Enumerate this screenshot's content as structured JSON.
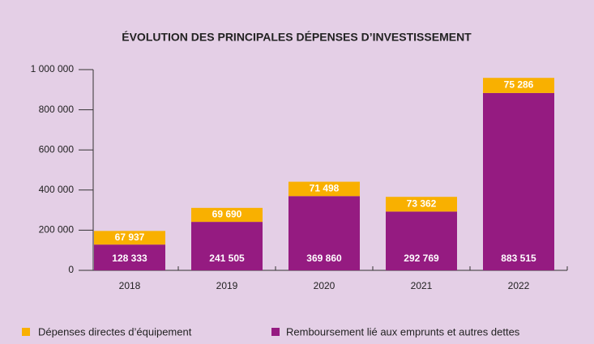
{
  "chart_data": {
    "type": "stacked_bar",
    "title": "ÉVOLUTION DES PRINCIPALES DÉPENSES D’INVESTISSEMENT",
    "categories": [
      "2018",
      "2019",
      "2020",
      "2021",
      "2022"
    ],
    "series": [
      {
        "name": "Remboursement lié aux emprunts et autres dettes",
        "color": "#951b81",
        "values": [
          128333,
          241505,
          369860,
          292769,
          883515
        ],
        "value_labels": [
          "128 333",
          "241 505",
          "369 860",
          "292 769",
          "883 515"
        ]
      },
      {
        "name": "Dépenses directes d’équipement",
        "color": "#f9b000",
        "values": [
          67937,
          69690,
          71498,
          73362,
          75286
        ],
        "value_labels": [
          "67 937",
          "69 690",
          "71 498",
          "73 362",
          "75 286"
        ]
      }
    ],
    "ylim": [
      0,
      1000000
    ],
    "yticks": [
      0,
      {
        "value": 200000,
        "label": "200 000"
      },
      {
        "value": 400000,
        "label": "400 000"
      },
      {
        "value": 600000,
        "label": "600 000"
      },
      {
        "value": 800000,
        "label": "800 000"
      },
      {
        "value": 1000000,
        "label": "1 000 000"
      }
    ]
  }
}
